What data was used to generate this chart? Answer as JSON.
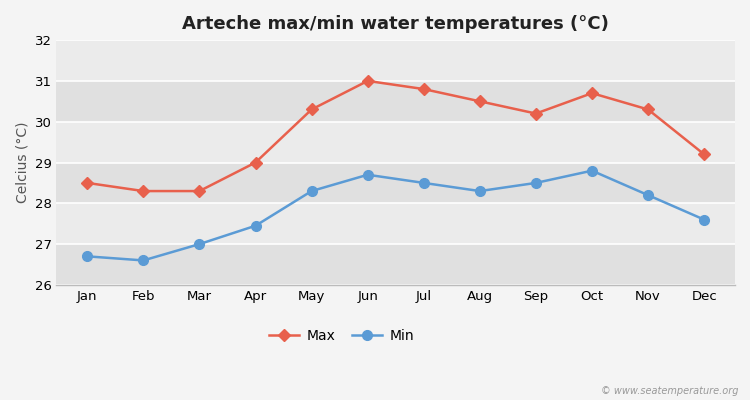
{
  "title": "Arteche max/min water temperatures (°C)",
  "ylabel": "Celcius (°C)",
  "months": [
    "Jan",
    "Feb",
    "Mar",
    "Apr",
    "May",
    "Jun",
    "Jul",
    "Aug",
    "Sep",
    "Oct",
    "Nov",
    "Dec"
  ],
  "max_temps": [
    28.5,
    28.3,
    28.3,
    29.0,
    30.3,
    31.0,
    30.8,
    30.5,
    30.2,
    30.7,
    30.3,
    29.2
  ],
  "min_temps": [
    26.7,
    26.6,
    27.0,
    27.45,
    28.3,
    28.7,
    28.5,
    28.3,
    28.5,
    28.8,
    28.2,
    27.6
  ],
  "max_color": "#e8604c",
  "min_color": "#5b9bd5",
  "fig_bg_color": "#f4f4f4",
  "plot_bg_light": "#ebebeb",
  "plot_bg_dark": "#e0e0e0",
  "grid_color": "#ffffff",
  "ylim": [
    26.0,
    32.0
  ],
  "yticks": [
    26,
    27,
    28,
    29,
    30,
    31,
    32
  ],
  "legend_max": "Max",
  "legend_min": "Min",
  "watermark": "© www.seatemperature.org",
  "title_fontsize": 13,
  "label_fontsize": 10,
  "tick_fontsize": 9.5,
  "marker_size_max": 6,
  "marker_size_min": 7,
  "line_width": 1.8
}
